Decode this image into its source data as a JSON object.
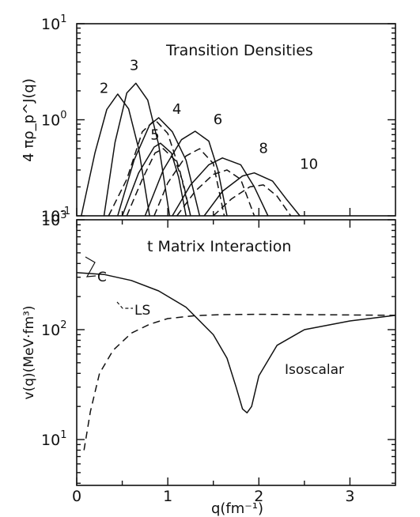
{
  "chart_data": [
    {
      "type": "line",
      "title": "Transition Densities",
      "ylabel": "4 πρ_p^J(q)",
      "ylim_log10": [
        -1,
        1
      ],
      "xlim": [
        0,
        3.5
      ],
      "yscale": "log",
      "y_tick_labels": [
        {
          "value": 10,
          "base": "10",
          "exp": "1"
        },
        {
          "value": 1,
          "base": "10",
          "exp": "0"
        },
        {
          "value": 0.1,
          "base": "10",
          "exp": "-1"
        }
      ],
      "series": [
        {
          "name": "2",
          "style": "solid",
          "x": [
            0.05,
            0.2,
            0.33,
            0.45,
            0.57,
            0.68,
            0.8
          ],
          "y": [
            0.1,
            0.45,
            1.28,
            1.85,
            1.3,
            0.5,
            0.1
          ]
        },
        {
          "name": "3",
          "style": "solid",
          "x": [
            0.3,
            0.42,
            0.55,
            0.65,
            0.78,
            0.9,
            1.02
          ],
          "y": [
            0.1,
            0.58,
            1.9,
            2.4,
            1.6,
            0.55,
            0.1
          ]
        },
        {
          "name": "4",
          "style": "dashed",
          "x": [
            0.35,
            0.55,
            0.72,
            0.86,
            1.0,
            1.13,
            1.25
          ],
          "y": [
            0.1,
            0.24,
            0.75,
            1.0,
            0.72,
            0.3,
            0.1
          ]
        },
        {
          "name": "4",
          "style": "solid",
          "x": [
            0.45,
            0.63,
            0.8,
            0.9,
            1.05,
            1.2,
            1.35
          ],
          "y": [
            0.1,
            0.38,
            0.88,
            1.05,
            0.75,
            0.38,
            0.1
          ]
        },
        {
          "name": "5",
          "style": "solid",
          "x": [
            0.5,
            0.68,
            0.85,
            0.92,
            1.04,
            1.12,
            1.2
          ],
          "y": [
            0.1,
            0.28,
            0.52,
            0.57,
            0.45,
            0.25,
            0.1
          ]
        },
        {
          "name": "5",
          "style": "dashed",
          "x": [
            0.55,
            0.72,
            0.86,
            0.95,
            1.08,
            1.17,
            1.25
          ],
          "y": [
            0.1,
            0.24,
            0.45,
            0.5,
            0.38,
            0.22,
            0.1
          ]
        },
        {
          "name": "6",
          "style": "solid",
          "x": [
            0.75,
            0.95,
            1.15,
            1.3,
            1.45,
            1.55,
            1.65
          ],
          "y": [
            0.1,
            0.3,
            0.62,
            0.76,
            0.6,
            0.3,
            0.1
          ]
        },
        {
          "name": "6",
          "style": "dashed",
          "x": [
            0.85,
            1.0,
            1.2,
            1.35,
            1.5,
            1.62
          ],
          "y": [
            0.1,
            0.22,
            0.42,
            0.5,
            0.35,
            0.1
          ]
        },
        {
          "name": "8",
          "style": "solid",
          "x": [
            1.05,
            1.25,
            1.45,
            1.6,
            1.8,
            1.95,
            2.1
          ],
          "y": [
            0.1,
            0.21,
            0.34,
            0.4,
            0.34,
            0.2,
            0.1
          ]
        },
        {
          "name": "8",
          "style": "dashed",
          "x": [
            1.1,
            1.3,
            1.5,
            1.65,
            1.8,
            1.95
          ],
          "y": [
            0.1,
            0.18,
            0.27,
            0.3,
            0.24,
            0.1
          ]
        },
        {
          "name": "10",
          "style": "solid",
          "x": [
            1.4,
            1.6,
            1.82,
            1.95,
            2.15,
            2.3,
            2.45
          ],
          "y": [
            0.1,
            0.18,
            0.26,
            0.28,
            0.23,
            0.15,
            0.1
          ]
        },
        {
          "name": "10",
          "style": "dashed",
          "x": [
            1.5,
            1.7,
            1.9,
            2.05,
            2.2,
            2.35
          ],
          "y": [
            0.1,
            0.15,
            0.2,
            0.21,
            0.16,
            0.1
          ]
        }
      ],
      "curve_labels": [
        {
          "text": "2",
          "x": 0.3,
          "y": 1.9
        },
        {
          "text": "3",
          "x": 0.63,
          "y": 3.3
        },
        {
          "text": "4",
          "x": 1.1,
          "y": 1.15
        },
        {
          "text": "5",
          "x": 0.86,
          "y": 0.62
        },
        {
          "text": "6",
          "x": 1.55,
          "y": 0.9
        },
        {
          "text": "8",
          "x": 2.05,
          "y": 0.45
        },
        {
          "text": "10",
          "x": 2.55,
          "y": 0.31
        }
      ]
    },
    {
      "type": "line",
      "title": "t Matrix Interaction",
      "xlabel": "q(fm⁻¹)",
      "ylabel": "v(q)(MeV·fm³)",
      "yscale": "log",
      "xlim": [
        0,
        3.5
      ],
      "x_ticks": [
        0,
        1,
        2,
        3
      ],
      "y_tick_labels": [
        {
          "value": 1000,
          "base": "10",
          "exp": "3"
        },
        {
          "value": 100,
          "base": "10",
          "exp": "2"
        },
        {
          "value": 10,
          "base": "10",
          "exp": "1"
        }
      ],
      "annotation": "Isoscalar",
      "series": [
        {
          "name": "C",
          "style": "solid",
          "x": [
            0,
            0.3,
            0.6,
            0.9,
            1.2,
            1.5,
            1.65,
            1.75,
            1.82,
            1.87,
            1.92,
            2.0,
            2.2,
            2.5,
            3.0,
            3.5
          ],
          "y": [
            330,
            318,
            280,
            225,
            160,
            90,
            55,
            30,
            19,
            17.5,
            20,
            38,
            72,
            100,
            120,
            135
          ]
        },
        {
          "name": "LS",
          "style": "dashed",
          "x": [
            0.08,
            0.15,
            0.25,
            0.4,
            0.6,
            0.8,
            1.0,
            1.3,
            1.6,
            2.0,
            2.5,
            3.0,
            3.5
          ],
          "y": [
            8,
            18,
            40,
            65,
            93,
            112,
            126,
            134,
            137,
            138,
            137,
            136,
            135
          ]
        }
      ]
    }
  ]
}
